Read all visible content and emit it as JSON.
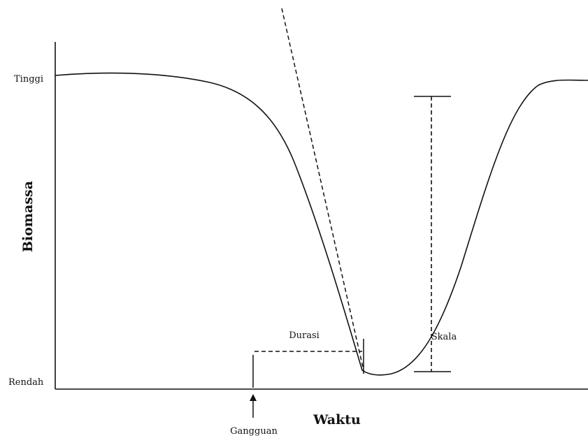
{
  "axes": {
    "y_label": "Biomassa",
    "x_label": "Waktu",
    "y_high": "Tinggi",
    "y_low": "Rendah"
  },
  "annotations": {
    "disturbance": "Gangguan",
    "duration": "Durasi",
    "scale": "Skala"
  }
}
